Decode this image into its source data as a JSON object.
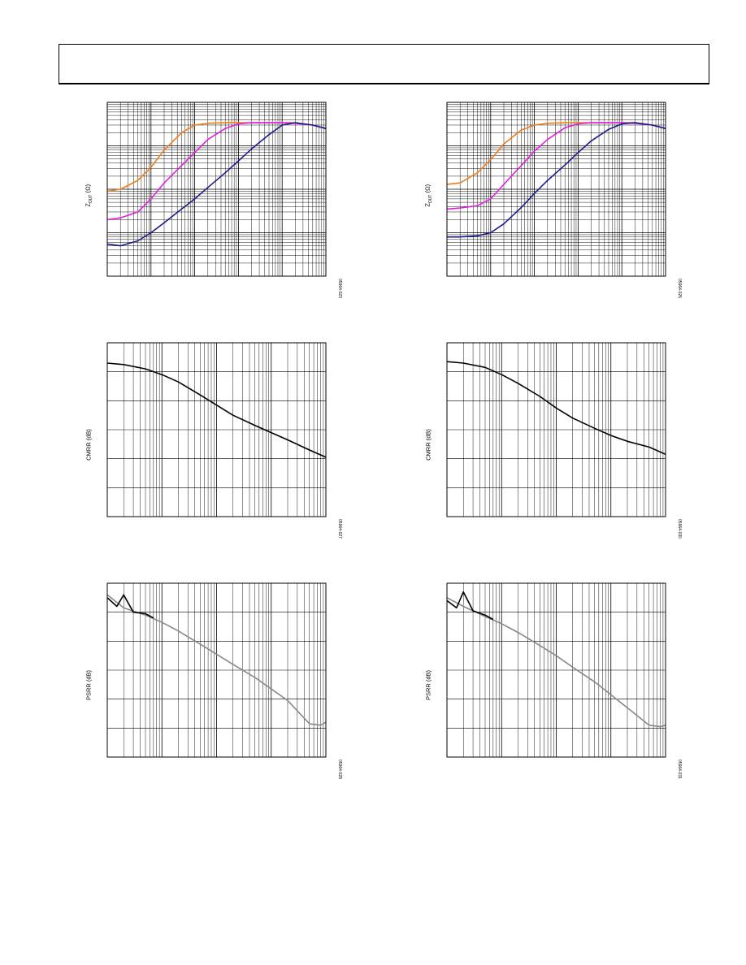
{
  "page": {},
  "chart_data": [
    {
      "id": "zout-left",
      "type": "line",
      "ylabel_main": "Z",
      "ylabel_sub": "OUT",
      "ylabel_unit": " (Ω)",
      "fig_id": "05964-023",
      "xlog": true,
      "ylog": true,
      "xlim": [
        0.001,
        100
      ],
      "ylim": [
        0.01,
        100
      ],
      "grid": true,
      "series": [
        {
          "color": "#f07c1a",
          "x": [
            0.001,
            0.002,
            0.005,
            0.01,
            0.02,
            0.05,
            0.1,
            0.2,
            0.5,
            1,
            2,
            5,
            10,
            20,
            50,
            100
          ],
          "y": [
            0.9,
            1.0,
            1.6,
            3.2,
            8,
            20,
            30,
            33,
            34,
            34,
            34,
            34,
            34,
            34,
            30,
            25
          ]
        },
        {
          "color": "#e020e0",
          "x": [
            0.001,
            0.002,
            0.005,
            0.01,
            0.02,
            0.05,
            0.1,
            0.2,
            0.5,
            1,
            2,
            5,
            10,
            20,
            50,
            100
          ],
          "y": [
            0.2,
            0.22,
            0.3,
            0.6,
            1.4,
            3.5,
            7,
            14,
            25,
            32,
            34,
            34,
            34,
            33,
            30,
            25
          ]
        },
        {
          "color": "#1a1a8c",
          "x": [
            0.001,
            0.002,
            0.005,
            0.01,
            0.02,
            0.05,
            0.1,
            0.2,
            0.5,
            1,
            2,
            5,
            10,
            20,
            50,
            100
          ],
          "y": [
            0.055,
            0.05,
            0.065,
            0.1,
            0.17,
            0.35,
            0.6,
            1.1,
            2.4,
            4.5,
            8.5,
            18,
            30,
            34,
            30,
            25
          ]
        }
      ]
    },
    {
      "id": "zout-right",
      "type": "line",
      "ylabel_main": "Z",
      "ylabel_sub": "OUT",
      "ylabel_unit": " (Ω)",
      "fig_id": "05964-026",
      "xlog": true,
      "ylog": true,
      "xlim": [
        0.001,
        100
      ],
      "ylim": [
        0.01,
        100
      ],
      "grid": true,
      "series": [
        {
          "color": "#f07c1a",
          "x": [
            0.001,
            0.002,
            0.005,
            0.01,
            0.02,
            0.05,
            0.1,
            0.2,
            0.5,
            1,
            2,
            5,
            10,
            20,
            50,
            100
          ],
          "y": [
            1.3,
            1.4,
            2.4,
            4.8,
            11,
            23,
            30,
            33,
            34,
            34,
            34,
            34,
            34,
            34,
            30,
            25
          ]
        },
        {
          "color": "#e020e0",
          "x": [
            0.001,
            0.002,
            0.005,
            0.01,
            0.02,
            0.05,
            0.1,
            0.2,
            0.5,
            1,
            2,
            5,
            10,
            20,
            50,
            100
          ],
          "y": [
            0.35,
            0.37,
            0.42,
            0.6,
            1.3,
            3.5,
            7.5,
            14,
            26,
            32,
            34,
            34,
            34,
            33,
            30,
            25
          ]
        },
        {
          "color": "#1a1a8c",
          "x": [
            0.001,
            0.002,
            0.005,
            0.01,
            0.02,
            0.05,
            0.1,
            0.2,
            0.5,
            1,
            2,
            5,
            10,
            20,
            50,
            100
          ],
          "y": [
            0.08,
            0.08,
            0.085,
            0.1,
            0.16,
            0.38,
            0.8,
            1.6,
            3.6,
            7,
            13,
            24,
            32,
            34,
            30,
            25
          ]
        }
      ]
    },
    {
      "id": "cmrr-left",
      "type": "line",
      "ylabel": "CMRR (dB)",
      "fig_id": "05964-027",
      "xlog": true,
      "ylog": false,
      "xlim": [
        0.001,
        10
      ],
      "ylim": [
        0,
        120
      ],
      "grid": true,
      "series": [
        {
          "color": "#000000",
          "x": [
            0.001,
            0.002,
            0.005,
            0.01,
            0.02,
            0.05,
            0.1,
            0.2,
            0.5,
            1,
            2,
            5,
            10
          ],
          "y": [
            106,
            105,
            102,
            98,
            93,
            84,
            77,
            70,
            63,
            58,
            53,
            46,
            41
          ]
        }
      ]
    },
    {
      "id": "cmrr-right",
      "type": "line",
      "ylabel": "CMRR (dB)",
      "fig_id": "05964-030",
      "xlog": true,
      "ylog": false,
      "xlim": [
        0.001,
        10
      ],
      "ylim": [
        0,
        120
      ],
      "grid": true,
      "series": [
        {
          "color": "#000000",
          "x": [
            0.001,
            0.002,
            0.005,
            0.01,
            0.02,
            0.05,
            0.1,
            0.2,
            0.5,
            1,
            2,
            5,
            10
          ],
          "y": [
            107,
            106,
            103,
            98,
            92,
            83,
            75,
            68,
            61,
            56,
            52,
            48,
            43
          ]
        }
      ]
    },
    {
      "id": "psrr-left",
      "type": "line",
      "ylabel": "PSRR (dB)",
      "fig_id": "05964-028",
      "xlog": true,
      "ylog": false,
      "xlim": [
        0.001,
        10
      ],
      "ylim": [
        0,
        120
      ],
      "grid": true,
      "series": [
        {
          "color": "#888888",
          "x": [
            0.001,
            0.002,
            0.005,
            0.01,
            0.02,
            0.05,
            0.1,
            0.2,
            0.5,
            1,
            2,
            5,
            8,
            10
          ],
          "y": [
            112,
            103,
            98,
            93,
            87,
            78,
            71,
            64,
            55,
            47,
            39,
            23,
            22,
            24
          ]
        },
        {
          "color": "#000000",
          "x": [
            0.001,
            0.0015,
            0.002,
            0.003,
            0.005,
            0.007
          ],
          "y": [
            110,
            104,
            112,
            100,
            99,
            96
          ]
        }
      ]
    },
    {
      "id": "psrr-right",
      "type": "line",
      "ylabel": "PSRR (dB)",
      "fig_id": "05964-031",
      "xlog": true,
      "ylog": false,
      "xlim": [
        0.001,
        10
      ],
      "ylim": [
        0,
        120
      ],
      "grid": true,
      "series": [
        {
          "color": "#888888",
          "x": [
            0.001,
            0.002,
            0.005,
            0.01,
            0.02,
            0.05,
            0.1,
            0.2,
            0.5,
            1,
            2,
            5,
            8,
            10
          ],
          "y": [
            110,
            104,
            97,
            92,
            86,
            77,
            70,
            62,
            52,
            43,
            34,
            22,
            21,
            22
          ]
        },
        {
          "color": "#000000",
          "x": [
            0.001,
            0.0015,
            0.002,
            0.003,
            0.005,
            0.007
          ],
          "y": [
            108,
            103,
            114,
            101,
            98,
            95
          ]
        }
      ]
    }
  ]
}
